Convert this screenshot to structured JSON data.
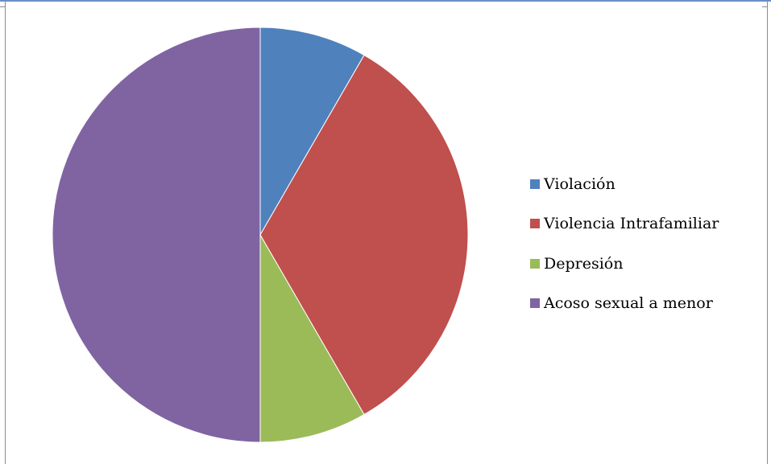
{
  "chart_data": {
    "type": "pie",
    "title": "",
    "start_angle_deg": 0,
    "direction": "clockwise",
    "series": [
      {
        "name": "",
        "values": [
          1,
          4,
          1,
          6
        ]
      }
    ],
    "categories": [
      "Violación",
      "Violencia Intrafamiliar",
      "Depresión",
      "Acoso sexual a menor"
    ],
    "colors": [
      "#4f81bd",
      "#c0504d",
      "#9bbb59",
      "#8064a2"
    ],
    "legend_position": "right"
  },
  "legend": {
    "items": [
      {
        "label": "Violación",
        "color": "#4f81bd"
      },
      {
        "label": "Violencia Intrafamiliar",
        "color": "#c0504d"
      },
      {
        "label": "Depresión",
        "color": "#9bbb59"
      },
      {
        "label": "Acoso sexual a menor",
        "color": "#8064a2"
      }
    ]
  },
  "frame": {
    "accent_color": "#6a8fc4",
    "border_color": "#8c8c8c"
  }
}
